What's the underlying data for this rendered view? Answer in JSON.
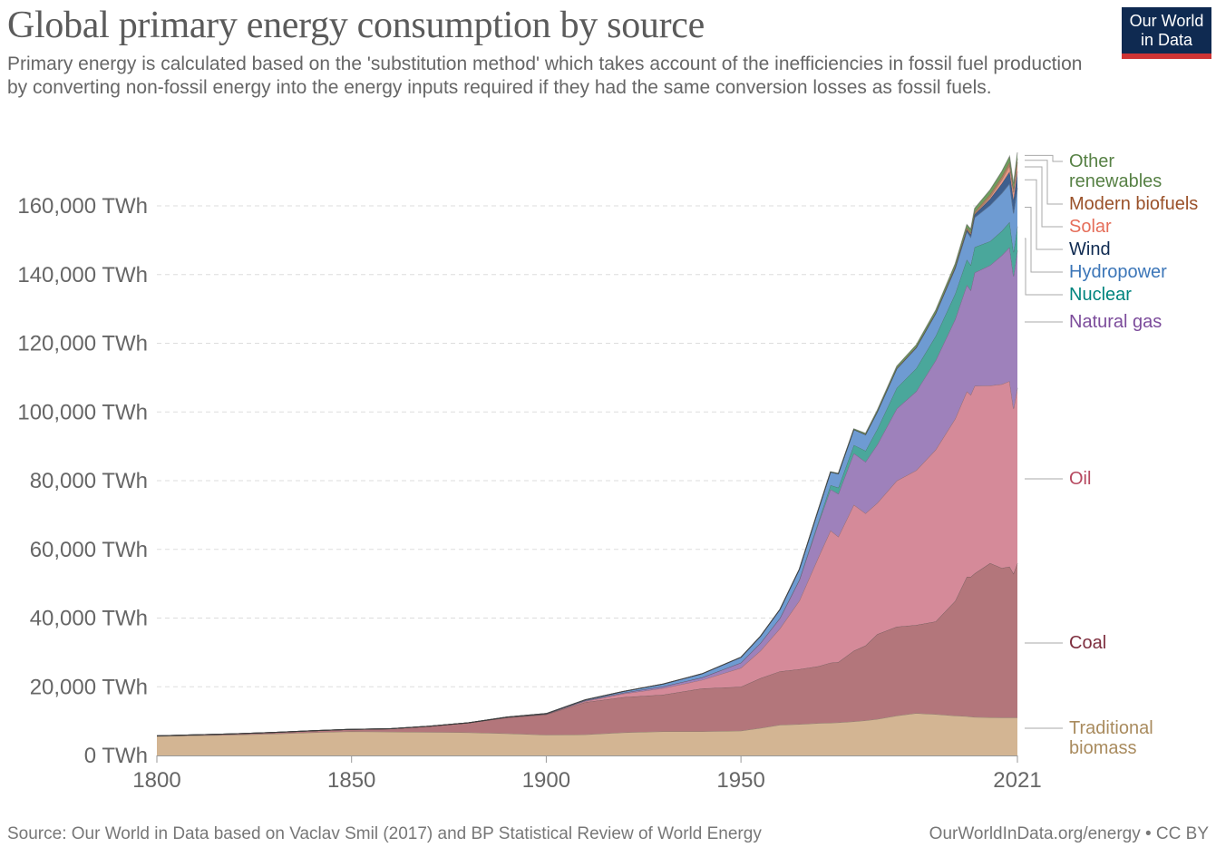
{
  "header": {
    "title": "Global primary energy consumption by source",
    "subtitle": "Primary energy is calculated based on the 'substitution method' which takes account of the inefficiencies in fossil fuel production by converting non-fossil energy into the energy inputs required if they had the same conversion losses as fossil fuels.",
    "logo_line1": "Our World",
    "logo_line2": "in Data"
  },
  "footer": {
    "source": "Source: Our World in Data based on Vaclav Smil (2017) and BP Statistical Review of World Energy",
    "license": "OurWorldInData.org/energy • CC BY"
  },
  "colors": {
    "logo_bg": "#0f2a51",
    "logo_bar": "#cf3434"
  },
  "chart_data": {
    "type": "area",
    "stacked": true,
    "title": "Global primary energy consumption by source",
    "xlabel": "",
    "ylabel": "",
    "xlim": [
      1800,
      2021
    ],
    "ylim": [
      0,
      170000
    ],
    "y_unit": "TWh",
    "grid": "horizontal-dashed",
    "legend": "right (labels at end of series)",
    "x_ticks": [
      "1800",
      "1850",
      "1900",
      "1950",
      "2021"
    ],
    "x_tick_values": [
      1800,
      1850,
      1900,
      1950,
      2021
    ],
    "y_ticks": [
      "0 TWh",
      "20,000 TWh",
      "40,000 TWh",
      "60,000 TWh",
      "80,000 TWh",
      "100,000 TWh",
      "120,000 TWh",
      "140,000 TWh",
      "160,000 TWh"
    ],
    "y_tick_values": [
      0,
      20000,
      40000,
      60000,
      80000,
      100000,
      120000,
      140000,
      160000
    ],
    "x": [
      1800,
      1810,
      1820,
      1830,
      1840,
      1850,
      1860,
      1870,
      1880,
      1890,
      1900,
      1910,
      1920,
      1930,
      1940,
      1950,
      1955,
      1960,
      1965,
      1970,
      1973,
      1975,
      1979,
      1982,
      1985,
      1990,
      1995,
      2000,
      2005,
      2008,
      2009,
      2010,
      2014,
      2017,
      2019,
      2020,
      2021
    ],
    "series": [
      {
        "name": "Traditional biomass",
        "color": "#d3b593",
        "label_color": "#a98b5e",
        "values": [
          5600,
          5800,
          6000,
          6300,
          6700,
          7000,
          6900,
          6800,
          6700,
          6400,
          6000,
          6100,
          6700,
          7000,
          7000,
          7200,
          8000,
          8900,
          9100,
          9400,
          9500,
          9600,
          9900,
          10200,
          10600,
          11600,
          12300,
          12000,
          11600,
          11400,
          11300,
          11200,
          11100,
          11000,
          11000,
          11000,
          11000
        ]
      },
      {
        "name": "Coal",
        "color": "#b3767b",
        "label_color": "#7d2e3e",
        "values": [
          100,
          200,
          300,
          400,
          500,
          600,
          900,
          1700,
          2800,
          4600,
          5900,
          9400,
          10300,
          10700,
          12500,
          12800,
          14500,
          15600,
          16000,
          16600,
          17500,
          17600,
          20600,
          21800,
          24700,
          25900,
          25700,
          27000,
          33400,
          40600,
          40700,
          41800,
          44900,
          43600,
          44000,
          42000,
          45000
        ]
      },
      {
        "name": "Oil",
        "color": "#d58a99",
        "label_color": "#b6485f",
        "values": [
          0,
          0,
          0,
          0,
          0,
          0,
          0,
          0,
          0,
          100,
          100,
          300,
          1000,
          1900,
          2500,
          5500,
          8000,
          12500,
          20000,
          32000,
          38500,
          36500,
          42500,
          38500,
          38200,
          42500,
          45000,
          50000,
          53000,
          54000,
          53000,
          54600,
          51700,
          53500,
          54000,
          48000,
          51000
        ]
      },
      {
        "name": "Natural gas",
        "color": "#9e81bb",
        "label_color": "#7c4c9b",
        "values": [
          0,
          0,
          0,
          0,
          0,
          0,
          0,
          0,
          0,
          100,
          100,
          200,
          300,
          500,
          700,
          1500,
          2200,
          3000,
          6000,
          10000,
          12000,
          12500,
          15000,
          15000,
          17000,
          21000,
          23000,
          26000,
          29000,
          31000,
          30500,
          33000,
          35000,
          37500,
          39000,
          38500,
          40000
        ]
      },
      {
        "name": "Nuclear",
        "color": "#4aa79b",
        "label_color": "#00847e",
        "values": [
          0,
          0,
          0,
          0,
          0,
          0,
          0,
          0,
          0,
          0,
          0,
          0,
          0,
          0,
          0,
          0,
          0,
          0,
          100,
          500,
          1200,
          1800,
          2400,
          3200,
          4500,
          6000,
          6700,
          7100,
          7400,
          7400,
          7300,
          7400,
          7000,
          7100,
          7300,
          7000,
          7000
        ]
      },
      {
        "name": "Hydropower",
        "color": "#6e9bd2",
        "label_color": "#3c76b8",
        "values": [
          0,
          0,
          0,
          0,
          0,
          0,
          0,
          0,
          0,
          0,
          100,
          200,
          400,
          700,
          1100,
          1600,
          2000,
          2500,
          3000,
          3500,
          3800,
          4000,
          4500,
          4700,
          5000,
          5600,
          6000,
          6500,
          7300,
          8100,
          8100,
          8600,
          10500,
          11000,
          11200,
          11300,
          11200
        ]
      },
      {
        "name": "Wind",
        "color": "#3e5f8e",
        "label_color": "#0f2a51",
        "values": [
          0,
          0,
          0,
          0,
          0,
          0,
          0,
          0,
          0,
          0,
          0,
          0,
          0,
          0,
          0,
          0,
          0,
          0,
          0,
          0,
          0,
          0,
          0,
          0,
          0,
          10,
          20,
          80,
          250,
          560,
          720,
          900,
          1840,
          2800,
          3500,
          4000,
          4800
        ]
      },
      {
        "name": "Solar",
        "color": "#e99784",
        "label_color": "#e56e5a",
        "values": [
          0,
          0,
          0,
          0,
          0,
          0,
          0,
          0,
          0,
          0,
          0,
          0,
          0,
          0,
          0,
          0,
          0,
          0,
          0,
          0,
          0,
          0,
          0,
          0,
          0,
          0,
          0,
          3,
          10,
          40,
          60,
          90,
          520,
          1120,
          1760,
          2100,
          2700
        ]
      },
      {
        "name": "Modern biofuels",
        "color": "#b0825e",
        "label_color": "#9a5129",
        "values": [
          0,
          0,
          0,
          0,
          0,
          0,
          0,
          0,
          0,
          0,
          0,
          0,
          0,
          0,
          0,
          0,
          0,
          0,
          0,
          0,
          0,
          0,
          0,
          100,
          150,
          200,
          230,
          250,
          400,
          600,
          650,
          700,
          850,
          950,
          1100,
          1000,
          1100
        ]
      },
      {
        "name": "Other renewables",
        "color": "#6f9e5e",
        "label_color": "#578145",
        "values": [
          0,
          0,
          0,
          0,
          0,
          0,
          0,
          0,
          0,
          0,
          0,
          0,
          0,
          0,
          0,
          0,
          0,
          0,
          0,
          100,
          120,
          150,
          200,
          300,
          400,
          500,
          600,
          700,
          800,
          900,
          950,
          1000,
          1300,
          1500,
          1600,
          1650,
          1750
        ]
      }
    ],
    "legend_labels": [
      {
        "series": "Other renewables",
        "lines": [
          "Other",
          "renewables"
        ]
      },
      {
        "series": "Modern biofuels",
        "lines": [
          "Modern biofuels"
        ]
      },
      {
        "series": "Solar",
        "lines": [
          "Solar"
        ]
      },
      {
        "series": "Wind",
        "lines": [
          "Wind"
        ]
      },
      {
        "series": "Hydropower",
        "lines": [
          "Hydropower"
        ]
      },
      {
        "series": "Nuclear",
        "lines": [
          "Nuclear"
        ]
      },
      {
        "series": "Natural gas",
        "lines": [
          "Natural gas"
        ]
      },
      {
        "series": "Oil",
        "lines": [
          "Oil"
        ]
      },
      {
        "series": "Coal",
        "lines": [
          "Coal"
        ]
      },
      {
        "series": "Traditional biomass",
        "lines": [
          "Traditional",
          "biomass"
        ]
      }
    ]
  }
}
